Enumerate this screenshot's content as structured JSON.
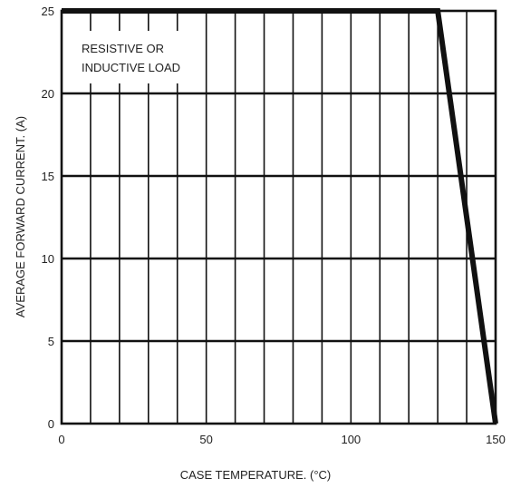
{
  "chart_data": {
    "type": "line",
    "xlabel": "CASE TEMPERATURE. (°C)",
    "ylabel": "AVERAGE FORWARD CURRENT. (A)",
    "xlim": [
      0,
      150
    ],
    "ylim": [
      0,
      25
    ],
    "x_ticks": [
      0,
      50,
      100,
      150
    ],
    "y_ticks": [
      0,
      5,
      10,
      15,
      20,
      25
    ],
    "x_tick_labels": [
      "0",
      "50",
      "100",
      "150"
    ],
    "y_tick_labels": [
      "0",
      "5",
      "10",
      "15",
      "20",
      "25"
    ],
    "x_grid_step": 10,
    "grid": true,
    "annotation_lines": [
      "RESISTIVE OR",
      "INDUCTIVE LOAD"
    ],
    "series": [
      {
        "x": [
          0,
          130,
          150
        ],
        "y": [
          25,
          25,
          0
        ]
      }
    ]
  }
}
